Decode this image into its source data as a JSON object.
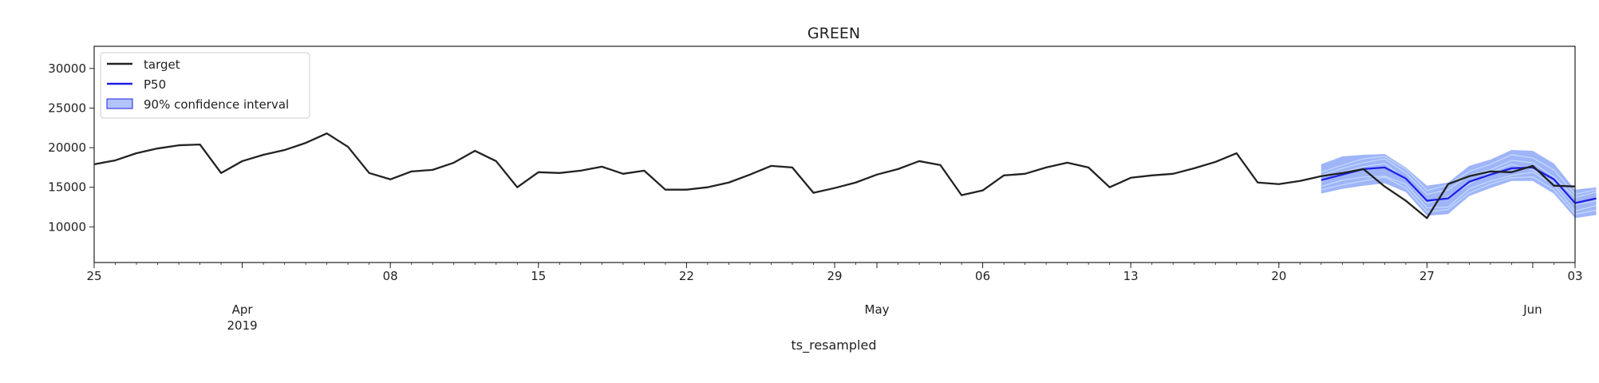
{
  "chart_data": {
    "type": "line",
    "title": "GREEN",
    "title_color": "#a01818",
    "xlabel": "ts_resampled",
    "ylabel": "",
    "x_range": [
      "2019-03-25",
      "2019-06-03"
    ],
    "ylim": [
      5500,
      32800
    ],
    "yticks": [
      10000,
      15000,
      20000,
      25000,
      30000
    ],
    "grid": false,
    "legend_position": "top-left",
    "x_major_ticks": [
      {
        "date": "2019-03-25",
        "label": "25"
      },
      {
        "date": "2019-04-01",
        "label": "Apr\n2019"
      },
      {
        "date": "2019-04-08",
        "label": "08"
      },
      {
        "date": "2019-04-15",
        "label": "15"
      },
      {
        "date": "2019-04-22",
        "label": "22"
      },
      {
        "date": "2019-04-29",
        "label": "29"
      },
      {
        "date": "2019-05-01",
        "label": "May"
      },
      {
        "date": "2019-05-06",
        "label": "06"
      },
      {
        "date": "2019-05-13",
        "label": "13"
      },
      {
        "date": "2019-05-20",
        "label": "20"
      },
      {
        "date": "2019-05-27",
        "label": "27"
      },
      {
        "date": "2019-06-01",
        "label": "Jun"
      },
      {
        "date": "2019-06-03",
        "label": "03"
      }
    ],
    "series": [
      {
        "name": "target",
        "color": "#222222",
        "start_date": "2019-03-25",
        "values": [
          17900,
          18400,
          19300,
          19900,
          20300,
          20400,
          16800,
          18300,
          19100,
          19700,
          20600,
          21800,
          20100,
          16800,
          16000,
          17000,
          17200,
          18100,
          19600,
          18300,
          15000,
          16900,
          16800,
          17100,
          17600,
          16700,
          17100,
          14700,
          14700,
          15000,
          15600,
          16600,
          17700,
          17500,
          14300,
          14900,
          15600,
          16600,
          17300,
          18300,
          17800,
          14000,
          14600,
          16500,
          16700,
          17500,
          18100,
          17500,
          15000,
          16200,
          16500,
          16700,
          17400,
          18200,
          19300,
          15600,
          15400,
          15800,
          16400,
          16800,
          17300,
          15100,
          13300,
          11100,
          15400,
          16400,
          17000,
          16900,
          17700,
          15200,
          15100
        ]
      },
      {
        "name": "P50",
        "color": "#1f1fe6",
        "start_date": "2019-05-22",
        "values": [
          15900,
          16600,
          17300,
          17500,
          16100,
          13300,
          13600,
          15700,
          16600,
          17400,
          17500,
          16000,
          13000,
          13600
        ]
      }
    ],
    "confidence_interval": {
      "name": "90% confidence interval",
      "color": "#7f9cf5",
      "start_date": "2019-05-22",
      "lower": [
        14200,
        14800,
        15200,
        15500,
        14400,
        11400,
        11600,
        13900,
        14900,
        15800,
        15800,
        14200,
        11100,
        11500
      ],
      "upper": [
        17900,
        18900,
        19100,
        19200,
        17500,
        15200,
        15600,
        17700,
        18500,
        19700,
        19600,
        18000,
        14700,
        15000
      ]
    },
    "sample_paths": {
      "color": "#cfe3fc",
      "start_date": "2019-05-22",
      "paths": [
        [
          16500,
          17400,
          18100,
          18600,
          16800,
          14100,
          14700,
          16500,
          17200,
          18400,
          18100,
          16300,
          13700,
          14400
        ],
        [
          15100,
          15900,
          16300,
          16400,
          15400,
          12400,
          12500,
          14800,
          15800,
          16500,
          16900,
          15300,
          12000,
          12700
        ],
        [
          16900,
          17800,
          18600,
          18900,
          17300,
          14600,
          15300,
          17000,
          17900,
          19100,
          18700,
          17200,
          14100,
          14700
        ],
        [
          14700,
          15300,
          15800,
          16300,
          14900,
          11900,
          12200,
          14300,
          15400,
          16200,
          16300,
          14700,
          11600,
          12100
        ],
        [
          15700,
          16900,
          17600,
          18000,
          16000,
          13000,
          13800,
          15400,
          16900,
          17900,
          17200,
          15700,
          12800,
          13300
        ]
      ]
    }
  }
}
